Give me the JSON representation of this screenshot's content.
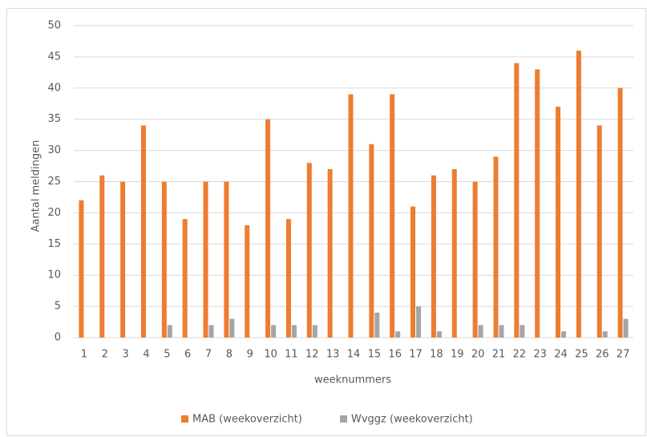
{
  "chart_data": {
    "type": "bar",
    "categories": [
      "1",
      "2",
      "3",
      "4",
      "5",
      "6",
      "7",
      "8",
      "9",
      "10",
      "11",
      "12",
      "13",
      "14",
      "15",
      "16",
      "17",
      "18",
      "19",
      "20",
      "21",
      "22",
      "23",
      "24",
      "25",
      "26",
      "27"
    ],
    "series": [
      {
        "name": "MAB (weekoverzicht)",
        "color": "#ED7D31",
        "values": [
          22,
          26,
          25,
          34,
          25,
          19,
          25,
          25,
          18,
          35,
          19,
          28,
          27,
          39,
          31,
          39,
          21,
          26,
          27,
          25,
          29,
          44,
          43,
          37,
          46,
          34,
          40
        ]
      },
      {
        "name": "Wvggz (weekoverzicht)",
        "color": "#A5A5A5",
        "values": [
          0,
          0,
          0,
          0,
          2,
          0,
          2,
          3,
          0,
          2,
          2,
          2,
          0,
          0,
          4,
          1,
          5,
          1,
          0,
          2,
          2,
          2,
          0,
          1,
          0,
          1,
          3
        ]
      }
    ],
    "xlabel": "weeknummers",
    "ylabel": "Aantal meldingen",
    "ylim": [
      0,
      50
    ],
    "yticks": [
      0,
      5,
      10,
      15,
      20,
      25,
      30,
      35,
      40,
      45,
      50
    ],
    "grid": true,
    "legend": "bottom"
  }
}
